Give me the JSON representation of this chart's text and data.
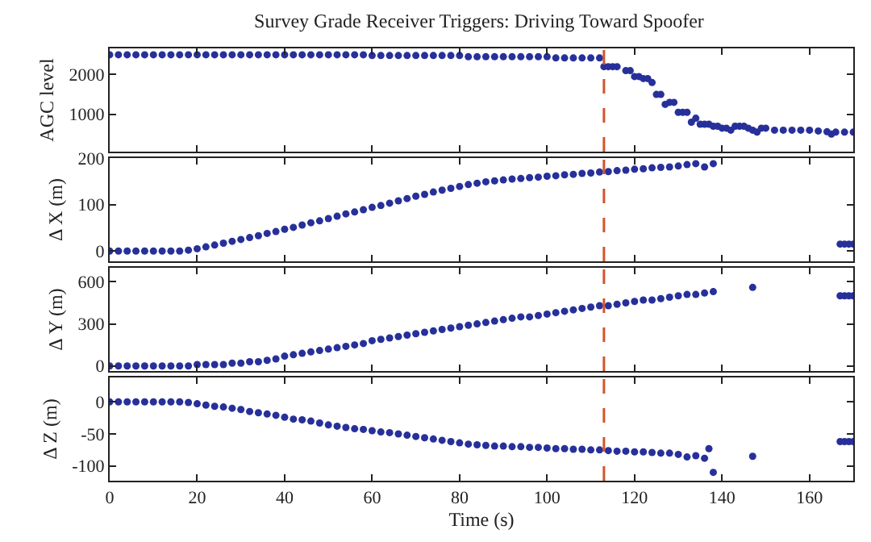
{
  "chart_data": [
    {
      "type": "scatter",
      "title": "Survey Grade Receiver Triggers: Driving Toward Spoofer",
      "ylabel": "AGC level",
      "xlim": [
        0,
        170
      ],
      "xticks": [
        0,
        20,
        40,
        60,
        80,
        100,
        120,
        140,
        160
      ],
      "ylim": [
        60,
        2660
      ],
      "yticks": [
        1000,
        2000
      ],
      "tick_labels": "y",
      "marker": "circle",
      "ref_lines": [
        {
          "axis": "x",
          "value": 113,
          "color": "#d2552a",
          "line_style": "dashed"
        }
      ],
      "series": [
        {
          "color": "#27309a",
          "x": [
            0,
            2,
            4,
            6,
            8,
            10,
            12,
            14,
            16,
            18,
            20,
            22,
            24,
            26,
            28,
            30,
            32,
            34,
            36,
            38,
            40,
            42,
            44,
            46,
            48,
            50,
            52,
            54,
            56,
            58,
            60,
            62,
            64,
            66,
            68,
            70,
            72,
            74,
            76,
            78,
            80,
            82,
            84,
            86,
            88,
            90,
            92,
            94,
            96,
            98,
            100,
            102,
            104,
            106,
            108,
            110,
            112,
            113,
            114,
            115,
            116,
            118,
            119,
            120,
            121,
            122,
            123,
            124,
            125,
            126,
            127,
            128,
            129,
            130,
            131,
            132,
            133,
            134,
            135,
            136,
            137,
            138,
            139,
            140,
            141,
            142,
            143,
            144,
            145,
            146,
            147,
            148,
            149,
            150,
            152,
            154,
            156,
            158,
            160,
            162,
            164,
            165,
            166,
            168,
            170
          ],
          "values": [
            2500,
            2500,
            2500,
            2500,
            2500,
            2500,
            2500,
            2500,
            2500,
            2500,
            2500,
            2500,
            2500,
            2500,
            2500,
            2500,
            2500,
            2500,
            2500,
            2500,
            2500,
            2500,
            2500,
            2500,
            2500,
            2500,
            2500,
            2500,
            2500,
            2500,
            2480,
            2480,
            2480,
            2480,
            2480,
            2480,
            2480,
            2480,
            2480,
            2480,
            2480,
            2450,
            2450,
            2450,
            2450,
            2450,
            2450,
            2450,
            2450,
            2450,
            2450,
            2420,
            2420,
            2420,
            2420,
            2420,
            2420,
            2200,
            2200,
            2200,
            2200,
            2100,
            2100,
            1950,
            1950,
            1900,
            1900,
            1800,
            1500,
            1500,
            1250,
            1300,
            1300,
            1050,
            1050,
            1050,
            800,
            900,
            750,
            750,
            750,
            700,
            700,
            650,
            650,
            600,
            700,
            700,
            700,
            650,
            600,
            550,
            650,
            650,
            600,
            600,
            600,
            600,
            600,
            580,
            560,
            500,
            550,
            550,
            550
          ]
        }
      ]
    },
    {
      "type": "scatter",
      "ylabel": "Δ X (m)",
      "xlim": [
        0,
        170
      ],
      "xticks": [
        0,
        20,
        40,
        60,
        80,
        100,
        120,
        140,
        160
      ],
      "ylim": [
        -22,
        200
      ],
      "yticks": [
        0,
        100,
        200
      ],
      "tick_labels": "y",
      "marker": "circle",
      "ref_lines": [
        {
          "axis": "x",
          "value": 113,
          "color": "#d2552a",
          "line_style": "dashed"
        }
      ],
      "series": [
        {
          "color": "#27309a",
          "x": [
            0,
            2,
            4,
            6,
            8,
            10,
            12,
            14,
            16,
            18,
            20,
            22,
            24,
            26,
            28,
            30,
            32,
            34,
            36,
            38,
            40,
            42,
            44,
            46,
            48,
            50,
            52,
            54,
            56,
            58,
            60,
            62,
            64,
            66,
            68,
            70,
            72,
            74,
            76,
            78,
            80,
            82,
            84,
            86,
            88,
            90,
            92,
            94,
            96,
            98,
            100,
            102,
            104,
            106,
            108,
            110,
            112,
            114,
            116,
            118,
            120,
            122,
            124,
            126,
            128,
            130,
            132,
            134,
            136,
            138,
            167,
            168,
            169,
            170
          ],
          "values": [
            0,
            0,
            0,
            0,
            0,
            0,
            0,
            0,
            0,
            2,
            5,
            9,
            13,
            17,
            21,
            25,
            29,
            33,
            38,
            42,
            47,
            51,
            56,
            61,
            65,
            70,
            75,
            80,
            84,
            89,
            94,
            98,
            103,
            108,
            113,
            118,
            122,
            127,
            131,
            135,
            139,
            143,
            146,
            149,
            151,
            153,
            155,
            156,
            158,
            159,
            161,
            162,
            164,
            165,
            167,
            168,
            170,
            171,
            173,
            174,
            176,
            177,
            179,
            180,
            181,
            183,
            186,
            188,
            181,
            188,
            15,
            15,
            15,
            15
          ]
        }
      ]
    },
    {
      "type": "scatter",
      "ylabel": "Δ Y (m)",
      "xlim": [
        0,
        170
      ],
      "xticks": [
        0,
        20,
        40,
        60,
        80,
        100,
        120,
        140,
        160
      ],
      "ylim": [
        -36,
        700
      ],
      "yticks": [
        0,
        300,
        600
      ],
      "tick_labels": "y",
      "marker": "circle",
      "ref_lines": [
        {
          "axis": "x",
          "value": 113,
          "color": "#d2552a",
          "line_style": "dashed"
        }
      ],
      "series": [
        {
          "color": "#27309a",
          "x": [
            0,
            2,
            4,
            6,
            8,
            10,
            12,
            14,
            16,
            18,
            20,
            22,
            24,
            26,
            28,
            30,
            32,
            34,
            36,
            38,
            40,
            42,
            44,
            46,
            48,
            50,
            52,
            54,
            56,
            58,
            60,
            62,
            64,
            66,
            68,
            70,
            72,
            74,
            76,
            78,
            80,
            82,
            84,
            86,
            88,
            90,
            92,
            94,
            96,
            98,
            100,
            102,
            104,
            106,
            108,
            110,
            112,
            114,
            116,
            118,
            120,
            122,
            124,
            126,
            128,
            130,
            132,
            134,
            136,
            138,
            147,
            167,
            168,
            169,
            170
          ],
          "values": [
            0,
            0,
            0,
            0,
            0,
            0,
            0,
            0,
            0,
            0,
            10,
            10,
            10,
            10,
            20,
            20,
            30,
            30,
            40,
            50,
            70,
            80,
            90,
            100,
            110,
            120,
            130,
            140,
            150,
            160,
            180,
            190,
            200,
            210,
            220,
            230,
            240,
            250,
            260,
            270,
            280,
            290,
            300,
            310,
            320,
            330,
            340,
            350,
            350,
            360,
            370,
            380,
            390,
            400,
            410,
            420,
            430,
            430,
            440,
            450,
            460,
            470,
            470,
            480,
            490,
            500,
            510,
            510,
            520,
            530,
            560,
            500,
            500,
            500,
            500
          ]
        }
      ]
    },
    {
      "type": "scatter",
      "ylabel": "Δ Z (m)",
      "xlabel": "Time (s)",
      "xlim": [
        0,
        170
      ],
      "xticks": [
        0,
        20,
        40,
        60,
        80,
        100,
        120,
        140,
        160
      ],
      "ylim": [
        -123,
        38
      ],
      "yticks": [
        -100,
        -50,
        0
      ],
      "marker": "circle",
      "ref_lines": [
        {
          "axis": "x",
          "value": 113,
          "color": "#d2552a",
          "line_style": "dashed"
        }
      ],
      "series": [
        {
          "color": "#27309a",
          "x": [
            0,
            2,
            4,
            6,
            8,
            10,
            12,
            14,
            16,
            18,
            20,
            22,
            24,
            26,
            28,
            30,
            32,
            34,
            36,
            38,
            40,
            42,
            44,
            46,
            48,
            50,
            52,
            54,
            56,
            58,
            60,
            62,
            64,
            66,
            68,
            70,
            72,
            74,
            76,
            78,
            80,
            82,
            84,
            86,
            88,
            90,
            92,
            94,
            96,
            98,
            100,
            102,
            104,
            106,
            108,
            110,
            112,
            114,
            116,
            118,
            120,
            122,
            124,
            126,
            128,
            130,
            132,
            134,
            136,
            137,
            138,
            147,
            167,
            168,
            169,
            170
          ],
          "values": [
            0,
            0,
            0,
            0,
            0,
            0,
            0,
            0,
            0,
            -1,
            -3,
            -5,
            -7,
            -8,
            -10,
            -12,
            -15,
            -17,
            -19,
            -21,
            -24,
            -27,
            -28,
            -30,
            -33,
            -36,
            -38,
            -40,
            -42,
            -43,
            -45,
            -47,
            -48,
            -50,
            -52,
            -54,
            -56,
            -58,
            -60,
            -62,
            -64,
            -66,
            -67,
            -68,
            -69,
            -69,
            -70,
            -70,
            -71,
            -71,
            -72,
            -73,
            -73,
            -74,
            -74,
            -75,
            -75,
            -76,
            -77,
            -77,
            -78,
            -78,
            -79,
            -80,
            -80,
            -82,
            -86,
            -84,
            -88,
            -73,
            -110,
            -85,
            -62,
            -62,
            -62,
            -62
          ]
        }
      ]
    }
  ]
}
